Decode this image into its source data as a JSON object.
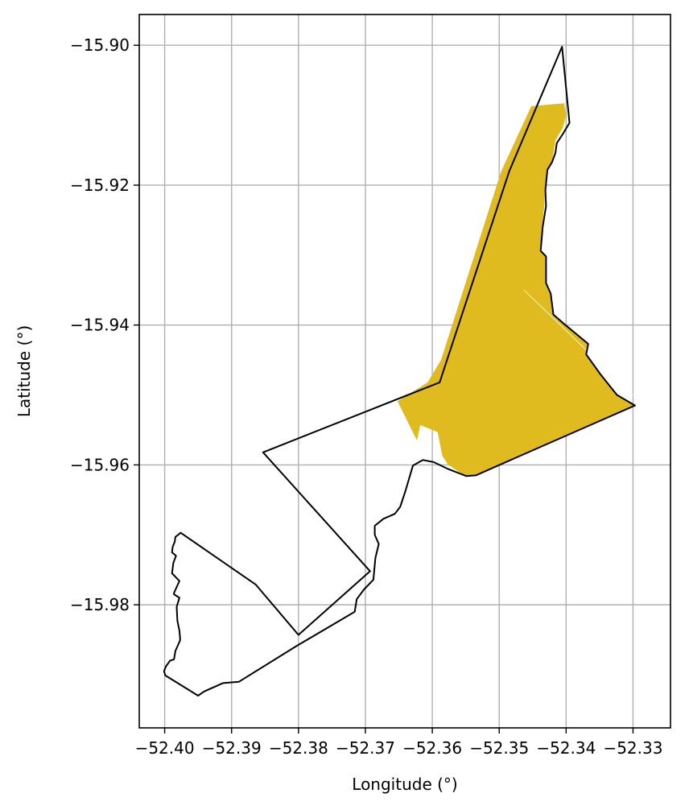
{
  "chart_data": {
    "type": "map",
    "xlabel": "Longitude (°)",
    "ylabel": "Latitude (°)",
    "xlim": [
      -52.4038,
      -52.3244
    ],
    "ylim": [
      -15.9976,
      -15.8956
    ],
    "grid": true,
    "x_ticks": [
      -52.4,
      -52.39,
      -52.38,
      -52.37,
      -52.36,
      -52.35,
      -52.34,
      -52.33
    ],
    "x_tick_labels": [
      "−52.40",
      "−52.39",
      "−52.38",
      "−52.37",
      "−52.36",
      "−52.35",
      "−52.34",
      "−52.33"
    ],
    "y_ticks": [
      -15.9,
      -15.92,
      -15.94,
      -15.96,
      -15.98
    ],
    "y_tick_labels": [
      "−15.90",
      "−15.92",
      "−15.94",
      "−15.96",
      "−15.98"
    ],
    "colors": {
      "fill": "#dfbb1f",
      "outline": "#000000",
      "grid": "#b0b0b0"
    },
    "filled_region": [
      [
        -52.3452,
        -15.9087
      ],
      [
        -52.3403,
        -15.9083
      ],
      [
        -52.34,
        -15.91
      ],
      [
        -52.3405,
        -15.9118
      ],
      [
        -52.3416,
        -15.9136
      ],
      [
        -52.3421,
        -15.9167
      ],
      [
        -52.3428,
        -15.9178
      ],
      [
        -52.3431,
        -15.9207
      ],
      [
        -52.3438,
        -15.9294
      ],
      [
        -52.343,
        -15.9302
      ],
      [
        -52.343,
        -15.934
      ],
      [
        -52.3423,
        -15.9355
      ],
      [
        -52.3419,
        -15.9385
      ],
      [
        -52.3401,
        -15.94
      ],
      [
        -52.3367,
        -15.9427
      ],
      [
        -52.337,
        -15.9442
      ],
      [
        -52.3349,
        -15.947
      ],
      [
        -52.3324,
        -15.95
      ],
      [
        -52.3297,
        -15.9515
      ],
      [
        -52.3502,
        -15.9601
      ],
      [
        -52.3535,
        -15.9615
      ],
      [
        -52.3549,
        -15.9616
      ],
      [
        -52.356,
        -15.961
      ],
      [
        -52.3577,
        -15.9599
      ],
      [
        -52.3585,
        -15.9587
      ],
      [
        -52.3592,
        -15.9553
      ],
      [
        -52.3618,
        -15.9543
      ],
      [
        -52.3623,
        -15.9565
      ],
      [
        -52.3652,
        -15.9509
      ],
      [
        -52.3607,
        -15.9482
      ],
      [
        -52.3587,
        -15.945
      ],
      [
        -52.3497,
        -15.918
      ]
    ],
    "outline": [
      [
        -52.3406,
        -15.9002
      ],
      [
        -52.3395,
        -15.9111
      ],
      [
        -52.3405,
        -15.9127
      ],
      [
        -52.3414,
        -15.914
      ],
      [
        -52.3416,
        -15.9154
      ],
      [
        -52.3421,
        -15.9167
      ],
      [
        -52.3428,
        -15.9178
      ],
      [
        -52.3431,
        -15.9207
      ],
      [
        -52.343,
        -15.923
      ],
      [
        -52.3435,
        -15.926
      ],
      [
        -52.3438,
        -15.9294
      ],
      [
        -52.343,
        -15.9302
      ],
      [
        -52.343,
        -15.934
      ],
      [
        -52.3423,
        -15.9355
      ],
      [
        -52.3419,
        -15.9385
      ],
      [
        -52.3401,
        -15.94
      ],
      [
        -52.3367,
        -15.9427
      ],
      [
        -52.337,
        -15.9442
      ],
      [
        -52.3349,
        -15.947
      ],
      [
        -52.3324,
        -15.95
      ],
      [
        -52.3297,
        -15.9515
      ],
      [
        -52.3502,
        -15.9601
      ],
      [
        -52.3535,
        -15.9615
      ],
      [
        -52.3549,
        -15.9616
      ],
      [
        -52.3576,
        -15.9606
      ],
      [
        -52.3598,
        -15.9596
      ],
      [
        -52.3614,
        -15.9593
      ],
      [
        -52.3629,
        -15.9601
      ],
      [
        -52.364,
        -15.9637
      ],
      [
        -52.3648,
        -15.966
      ],
      [
        -52.3656,
        -15.967
      ],
      [
        -52.3673,
        -15.9677
      ],
      [
        -52.3686,
        -15.9687
      ],
      [
        -52.3686,
        -15.97
      ],
      [
        -52.368,
        -15.9713
      ],
      [
        -52.3685,
        -15.9733
      ],
      [
        -52.3688,
        -15.9764
      ],
      [
        -52.3702,
        -15.9778
      ],
      [
        -52.3713,
        -15.9792
      ],
      [
        -52.3716,
        -15.981
      ],
      [
        -52.3803,
        -15.9859
      ],
      [
        -52.3889,
        -15.991
      ],
      [
        -52.3913,
        -15.9912
      ],
      [
        -52.3941,
        -15.9924
      ],
      [
        -52.395,
        -15.993
      ],
      [
        -52.3999,
        -15.9901
      ],
      [
        -52.4001,
        -15.9895
      ],
      [
        -52.3998,
        -15.9888
      ],
      [
        -52.3992,
        -15.988
      ],
      [
        -52.3986,
        -15.9878
      ],
      [
        -52.3984,
        -15.9866
      ],
      [
        -52.3977,
        -15.9851
      ],
      [
        -52.3977,
        -15.9847
      ],
      [
        -52.3978,
        -15.9837
      ],
      [
        -52.3981,
        -15.9823
      ],
      [
        -52.3982,
        -15.9803
      ],
      [
        -52.3978,
        -15.979
      ],
      [
        -52.3986,
        -15.9785
      ],
      [
        -52.3986,
        -15.9783
      ],
      [
        -52.3978,
        -15.9766
      ],
      [
        -52.3989,
        -15.9755
      ],
      [
        -52.3988,
        -15.9747
      ],
      [
        -52.3987,
        -15.974
      ],
      [
        -52.3983,
        -15.973
      ],
      [
        -52.3989,
        -15.9725
      ],
      [
        -52.3988,
        -15.9717
      ],
      [
        -52.3985,
        -15.971
      ],
      [
        -52.3984,
        -15.9703
      ],
      [
        -52.3976,
        -15.9697
      ],
      [
        -52.3864,
        -15.9771
      ],
      [
        -52.38,
        -15.9843
      ],
      [
        -52.3693,
        -15.9752
      ],
      [
        -52.3853,
        -15.9582
      ],
      [
        -52.3589,
        -15.9482
      ],
      [
        -52.3485,
        -15.918
      ],
      [
        -52.3406,
        -15.9002
      ]
    ],
    "internal_line": [
      [
        -52.3463,
        -15.935
      ],
      [
        -52.33,
        -15.95
      ]
    ]
  }
}
